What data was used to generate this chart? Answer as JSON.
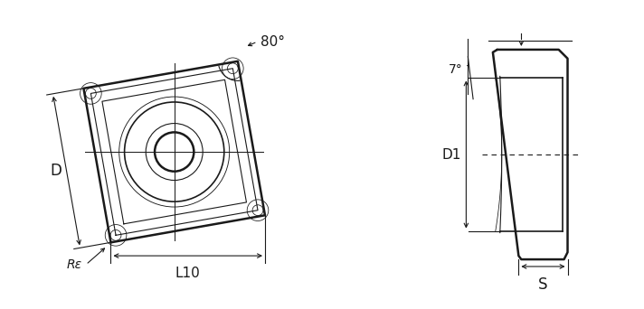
{
  "bg_color": "#ffffff",
  "line_color": "#1a1a1a",
  "text_color": "#1a1a1a",
  "font_size": 10,
  "fig_width": 7.12,
  "fig_height": 3.42,
  "labels": {
    "angle": "80°",
    "D": "D",
    "L10": "L10",
    "Re": "Rε",
    "D1": "D1",
    "S": "S",
    "clearance": "7°"
  }
}
